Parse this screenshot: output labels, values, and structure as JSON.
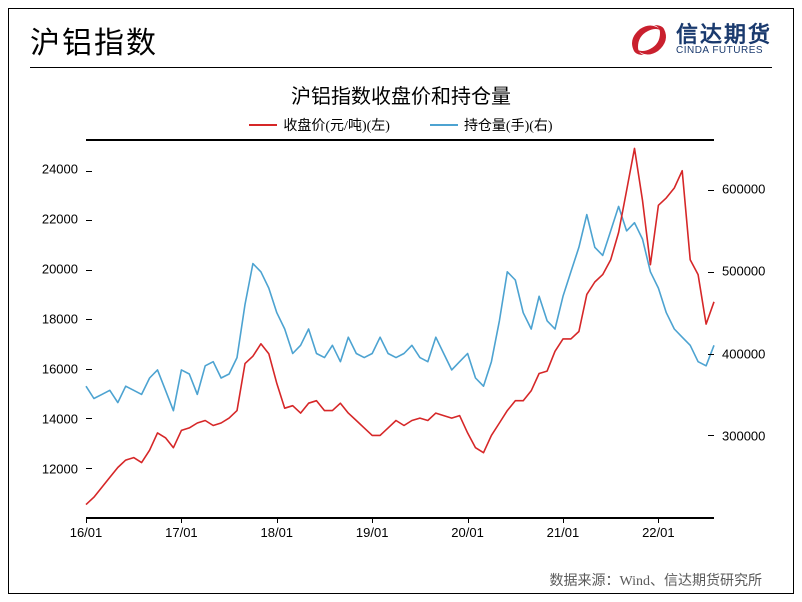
{
  "page": {
    "title": "沪铝指数",
    "source_label": "数据来源：Wind、信达期货研究所"
  },
  "brand": {
    "cn": "信达期货",
    "en": "CINDA FUTURES",
    "logo_color": "#c9202e",
    "text_color": "#1a3a6e"
  },
  "chart": {
    "type": "line-dual-axis",
    "title": "沪铝指数收盘价和持仓量",
    "title_fontsize": 20,
    "background_color": "#ffffff",
    "frame_color": "#000000",
    "series": [
      {
        "key": "close",
        "label": "收盘价(元/吨)(左)",
        "color": "#d62728",
        "axis": "left",
        "line_width": 1.6
      },
      {
        "key": "oi",
        "label": "持仓量(手)(右)",
        "color": "#4da3d1",
        "axis": "right",
        "line_width": 1.6
      }
    ],
    "x": {
      "ticks": [
        "16/01",
        "17/01",
        "18/01",
        "19/01",
        "20/01",
        "21/01",
        "22/01"
      ],
      "min_index": 0,
      "max_index": 79
    },
    "y_left": {
      "min": 10000,
      "max": 25200,
      "ticks": [
        12000,
        14000,
        16000,
        18000,
        20000,
        22000,
        24000
      ],
      "label_fontsize": 13
    },
    "y_right": {
      "min": 200000,
      "max": 660000,
      "ticks": [
        300000,
        400000,
        500000,
        600000
      ],
      "label_fontsize": 13
    },
    "data_close": [
      10500,
      10800,
      11200,
      11600,
      12000,
      12300,
      12400,
      12200,
      12700,
      13400,
      13200,
      12800,
      13500,
      13600,
      13800,
      13900,
      13700,
      13800,
      14000,
      14300,
      16200,
      16500,
      17000,
      16600,
      15400,
      14400,
      14500,
      14200,
      14600,
      14700,
      14300,
      14300,
      14600,
      14200,
      13900,
      13600,
      13300,
      13300,
      13600,
      13900,
      13700,
      13900,
      14000,
      13900,
      14200,
      14100,
      14000,
      14100,
      13400,
      12800,
      12600,
      13300,
      13800,
      14300,
      14700,
      14700,
      15100,
      15800,
      15900,
      16700,
      17200,
      17200,
      17500,
      19000,
      19500,
      19800,
      20400,
      21500,
      23200,
      24900,
      22800,
      20200,
      22600,
      22900,
      23300,
      24000,
      20400,
      19800,
      17800,
      18700
    ],
    "data_oi": [
      360000,
      345000,
      350000,
      355000,
      340000,
      360000,
      355000,
      350000,
      370000,
      380000,
      355000,
      330000,
      380000,
      375000,
      350000,
      385000,
      390000,
      370000,
      375000,
      395000,
      460000,
      510000,
      500000,
      480000,
      450000,
      430000,
      400000,
      410000,
      430000,
      400000,
      395000,
      410000,
      390000,
      420000,
      400000,
      395000,
      400000,
      420000,
      400000,
      395000,
      400000,
      410000,
      395000,
      390000,
      420000,
      400000,
      380000,
      390000,
      400000,
      370000,
      360000,
      390000,
      440000,
      500000,
      490000,
      450000,
      430000,
      470000,
      440000,
      430000,
      470000,
      500000,
      530000,
      570000,
      530000,
      520000,
      550000,
      580000,
      550000,
      560000,
      540000,
      500000,
      480000,
      450000,
      430000,
      420000,
      410000,
      390000,
      385000,
      410000
    ]
  }
}
